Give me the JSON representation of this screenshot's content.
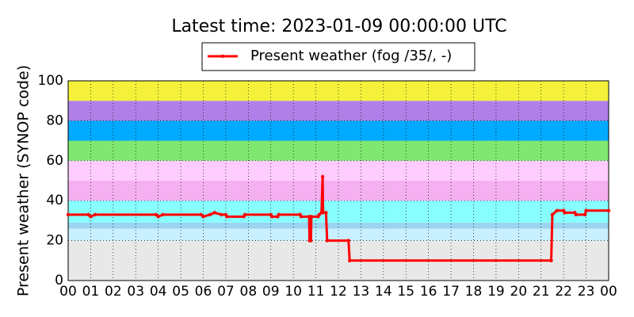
{
  "chart_data": {
    "type": "line",
    "title": "Latest time: 2023-01-09 00:00:00 UTC",
    "y_label": "Present weather (SYNOP code)",
    "xlim": [
      0,
      24
    ],
    "xticks": [
      {
        "value": 0,
        "label": "00"
      },
      {
        "value": 1,
        "label": "01"
      },
      {
        "value": 2,
        "label": "02"
      },
      {
        "value": 3,
        "label": "03"
      },
      {
        "value": 4,
        "label": "04"
      },
      {
        "value": 5,
        "label": "05"
      },
      {
        "value": 6,
        "label": "06"
      },
      {
        "value": 7,
        "label": "07"
      },
      {
        "value": 8,
        "label": "08"
      },
      {
        "value": 9,
        "label": "09"
      },
      {
        "value": 10,
        "label": "10"
      },
      {
        "value": 11,
        "label": "11"
      },
      {
        "value": 12,
        "label": "12"
      },
      {
        "value": 13,
        "label": "13"
      },
      {
        "value": 14,
        "label": "14"
      },
      {
        "value": 15,
        "label": "15"
      },
      {
        "value": 16,
        "label": "16"
      },
      {
        "value": 17,
        "label": "17"
      },
      {
        "value": 18,
        "label": "18"
      },
      {
        "value": 19,
        "label": "19"
      },
      {
        "value": 20,
        "label": "20"
      },
      {
        "value": 21,
        "label": "21"
      },
      {
        "value": 22,
        "label": "22"
      },
      {
        "value": 23,
        "label": "23"
      },
      {
        "value": 24,
        "label": "00"
      }
    ],
    "ylim": [
      0,
      100
    ],
    "yticks": [
      0,
      20,
      40,
      60,
      80,
      100
    ],
    "grid": true,
    "bands": [
      {
        "from": 0,
        "to": 20,
        "color": "#e8e8e8"
      },
      {
        "from": 20,
        "to": 26,
        "color": "#c8f0ff"
      },
      {
        "from": 26,
        "to": 29,
        "color": "#9cd4f0"
      },
      {
        "from": 29,
        "to": 40,
        "color": "#88ffff"
      },
      {
        "from": 40,
        "to": 50,
        "color": "#f4b0f0"
      },
      {
        "from": 50,
        "to": 60,
        "color": "#ffccff"
      },
      {
        "from": 60,
        "to": 70,
        "color": "#80e870"
      },
      {
        "from": 70,
        "to": 80,
        "color": "#00aaff"
      },
      {
        "from": 80,
        "to": 90,
        "color": "#b080e8"
      },
      {
        "from": 90,
        "to": 100,
        "color": "#f5f03a"
      }
    ],
    "x": [
      0,
      0.9,
      1.0,
      1.2,
      3.9,
      4.0,
      4.2,
      5.9,
      6.0,
      6.3,
      6.5,
      6.8,
      7.0,
      7.05,
      7.8,
      7.85,
      9.0,
      9.05,
      9.3,
      9.35,
      10.3,
      10.35,
      10.7,
      10.72,
      10.78,
      10.8,
      11.1,
      11.15,
      11.25,
      11.3,
      11.32,
      11.45,
      11.5,
      12.45,
      12.5,
      21.45,
      21.5,
      21.7,
      22.0,
      22.05,
      22.5,
      22.55,
      22.95,
      23.0,
      24.0
    ],
    "series": [
      {
        "name": "Present weather (fog /35/, -)",
        "color": "#ff0000",
        "values": [
          33,
          33,
          32,
          33,
          33,
          32,
          33,
          33,
          32,
          33,
          34,
          33,
          33,
          32,
          32,
          33,
          33,
          32,
          32,
          33,
          33,
          32,
          32,
          20,
          20,
          32,
          32,
          33,
          34,
          52,
          34,
          34,
          20,
          20,
          10,
          10,
          33,
          35,
          35,
          34,
          34,
          33,
          33,
          35,
          35
        ]
      }
    ]
  }
}
